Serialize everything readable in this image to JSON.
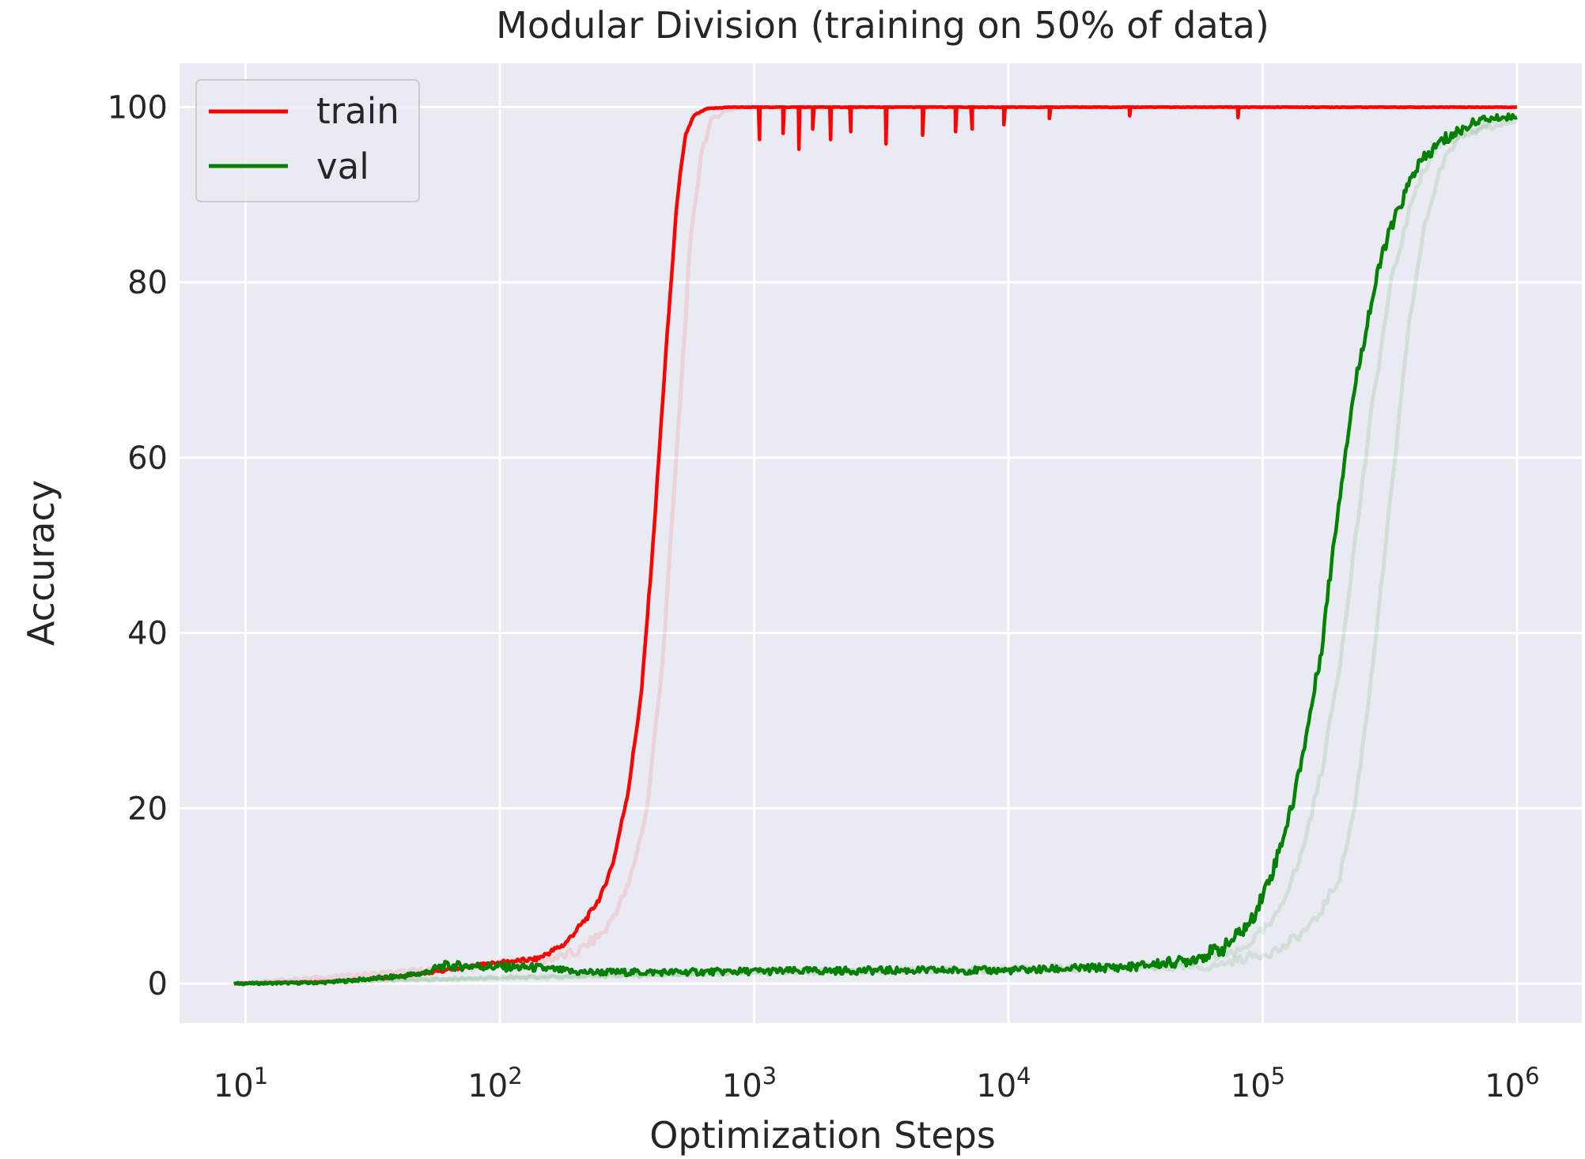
{
  "chart_data": {
    "type": "line",
    "title": "Modular Division (training on 50% of data)",
    "xlabel": "Optimization Steps",
    "ylabel": "Accuracy",
    "xscale": "log",
    "xlim": [
      5.5,
      1800000
    ],
    "ylim": [
      -4.5,
      105
    ],
    "x_ticks": [
      {
        "value": 10,
        "base": "10",
        "exp": "1"
      },
      {
        "value": 100,
        "base": "10",
        "exp": "2"
      },
      {
        "value": 1000,
        "base": "10",
        "exp": "3"
      },
      {
        "value": 10000,
        "base": "10",
        "exp": "4"
      },
      {
        "value": 100000,
        "base": "10",
        "exp": "5"
      },
      {
        "value": 1000000,
        "base": "10",
        "exp": "6"
      }
    ],
    "y_ticks": [
      {
        "value": 0,
        "label": "0"
      },
      {
        "value": 20,
        "label": "20"
      },
      {
        "value": 40,
        "label": "40"
      },
      {
        "value": 60,
        "label": "60"
      },
      {
        "value": 80,
        "label": "80"
      },
      {
        "value": 100,
        "label": "100"
      }
    ],
    "grid": true,
    "background": "#eaeaf2",
    "legend": {
      "position": "upper-left"
    },
    "series": [
      {
        "name": "train",
        "color": "#ff0000",
        "x": [
          9,
          20,
          30,
          40,
          55,
          70,
          100,
          140,
          180,
          220,
          250,
          280,
          320,
          360,
          400,
          450,
          500,
          540,
          580,
          650,
          800,
          1000,
          2000,
          5000,
          10000,
          100000,
          1000000
        ],
        "y": [
          0,
          0.2,
          0.5,
          0.8,
          1.3,
          1.8,
          2.4,
          2.8,
          4.5,
          7.5,
          10,
          14,
          22,
          33,
          50,
          72,
          90,
          97,
          99,
          99.8,
          100,
          100,
          100,
          100,
          100,
          100,
          100
        ],
        "dips": [
          [
            1050,
            96.3
          ],
          [
            1300,
            97
          ],
          [
            1500,
            95.2
          ],
          [
            1700,
            97.5
          ],
          [
            2000,
            96.3
          ],
          [
            2400,
            97.2
          ],
          [
            3300,
            95.8
          ],
          [
            4600,
            96.8
          ],
          [
            6200,
            97.2
          ],
          [
            7200,
            97.5
          ],
          [
            9600,
            98
          ],
          [
            14500,
            98.7
          ],
          [
            30000,
            99
          ],
          [
            80000,
            98.8
          ]
        ]
      },
      {
        "name": "val",
        "color": "#008000",
        "x": [
          9,
          20,
          30,
          40,
          50,
          60,
          80,
          100,
          140,
          200,
          500,
          1000,
          3000,
          10000,
          30000,
          50000,
          70000,
          90000,
          110000,
          130000,
          150000,
          170000,
          190000,
          210000,
          230000,
          260000,
          300000,
          350000,
          400000,
          500000,
          700000,
          1000000
        ],
        "y": [
          0,
          0.1,
          0.5,
          0.8,
          1.2,
          2.0,
          2.0,
          1.9,
          1.8,
          1.3,
          1.3,
          1.4,
          1.5,
          1.5,
          1.9,
          2.6,
          4.0,
          7.0,
          13.0,
          20.0,
          29.0,
          38.0,
          50.0,
          60.0,
          68.0,
          76.0,
          84.0,
          89.0,
          93.0,
          96.0,
          98.5,
          99.0
        ]
      }
    ],
    "shadow_series": [
      {
        "name": "train-raw",
        "color": "#ff0000",
        "x": [
          9,
          70,
          140,
          200,
          260,
          320,
          380,
          440,
          500,
          560,
          620,
          680,
          760,
          900,
          1000000
        ],
        "y": [
          0,
          1.8,
          2.5,
          3.5,
          6,
          11,
          20,
          38,
          62,
          84,
          95,
          98.5,
          99.5,
          100,
          100
        ]
      },
      {
        "name": "val-raw-1",
        "color": "#008000",
        "x": [
          9,
          1000,
          40000,
          80000,
          110000,
          140000,
          170000,
          200000,
          230000,
          270000,
          320000,
          400000,
          500000,
          1000000
        ],
        "y": [
          0,
          1.3,
          2.0,
          3.5,
          7,
          14,
          24,
          36,
          50,
          66,
          80,
          91,
          96,
          98.5
        ]
      },
      {
        "name": "val-raw-2",
        "color": "#008000",
        "x": [
          9,
          1000,
          60000,
          120000,
          160000,
          200000,
          230000,
          260000,
          300000,
          340000,
          380000,
          430000,
          500000,
          600000,
          1000000
        ],
        "y": [
          0,
          1.2,
          1.8,
          4,
          7,
          12,
          20,
          32,
          48,
          63,
          76,
          86,
          93,
          97,
          99
        ]
      }
    ]
  }
}
